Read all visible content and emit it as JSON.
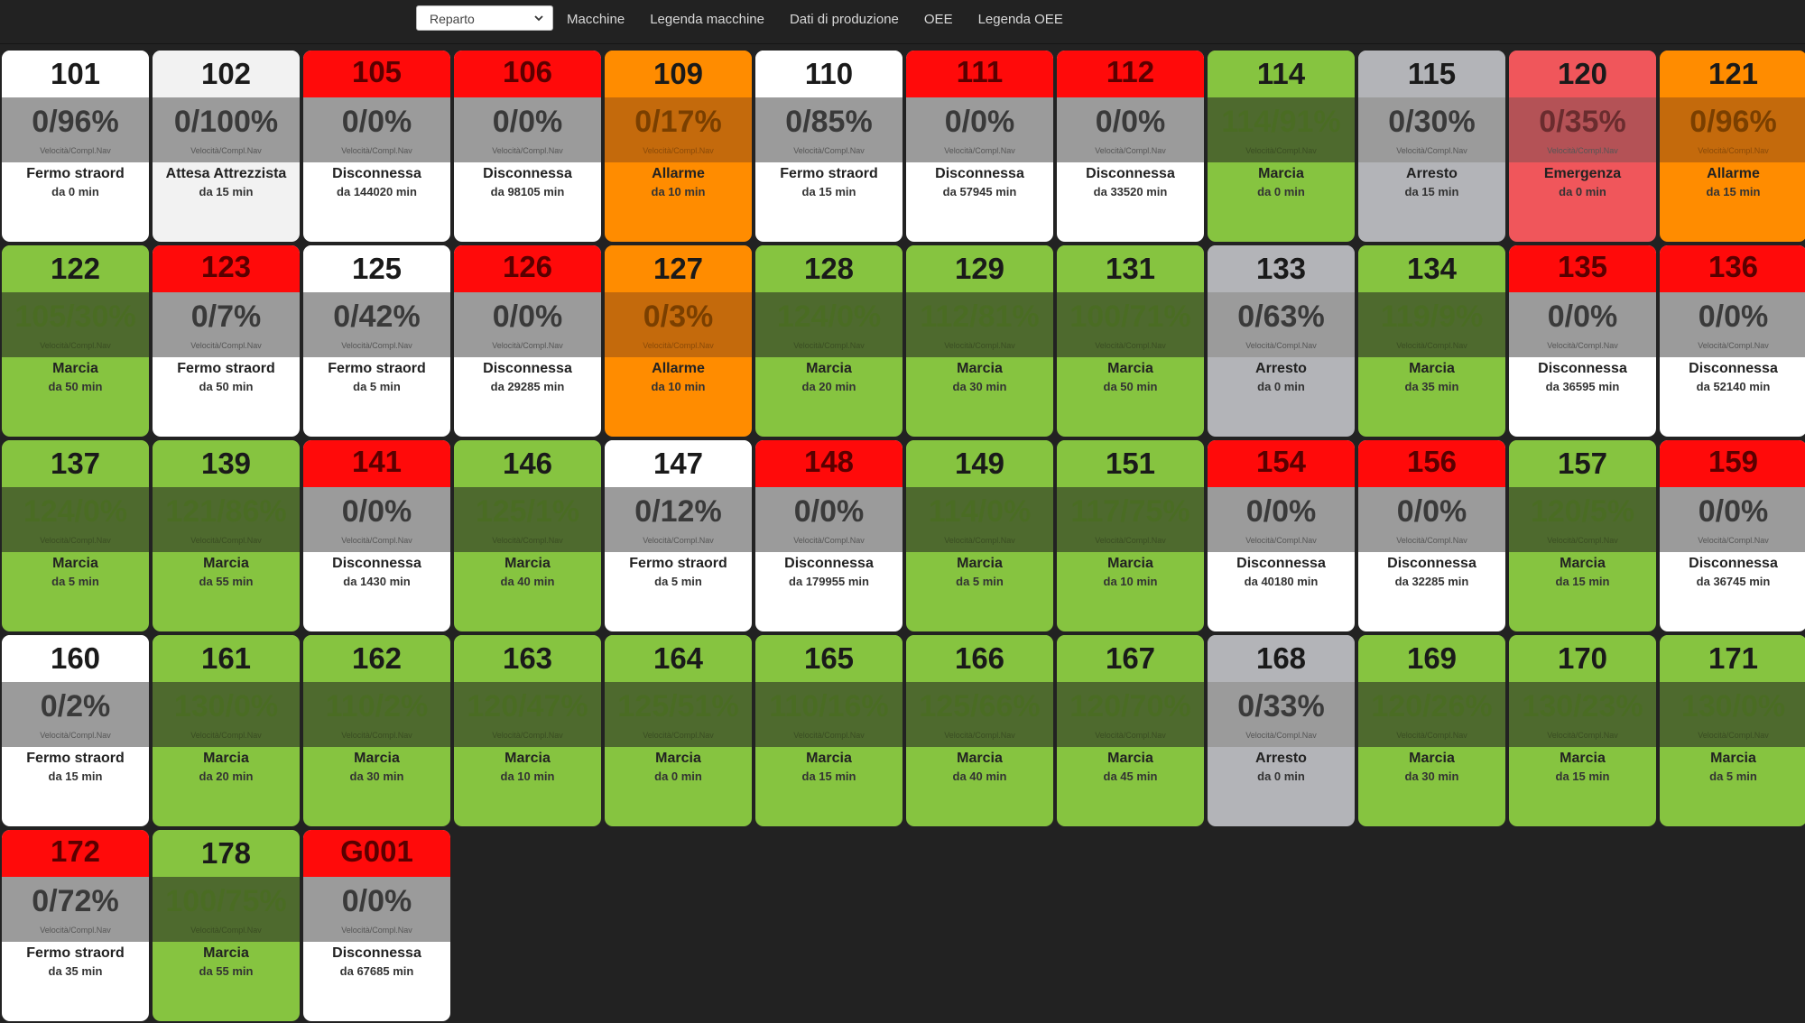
{
  "toolbar": {
    "select_value": "Reparto",
    "nav": [
      "Macchine",
      "Legenda macchine",
      "Dati di produzione",
      "OEE",
      "Legenda OEE"
    ]
  },
  "colors": {
    "white_hdr": "#ffffff",
    "gray_hdr": "#b3b4b8",
    "red_hdr": "#ff0a0a",
    "light_red": "#f0565b",
    "orange": "#ff8c00",
    "orange_mid": "#c46a0c",
    "green": "#86c440",
    "green_mid": "#4e6a2e",
    "gray_mid": "#9b9b9b",
    "gray_body": "#b3b4b8",
    "white_body": "#ffffff",
    "offwhite": "#f2f2f2"
  },
  "machines": [
    {
      "id": "101",
      "pct": "0/96%",
      "sub": "Velocità/Compl.Nav",
      "state": "Fermo straord",
      "dur": "da 0 min",
      "theme": "white"
    },
    {
      "id": "102",
      "pct": "0/100%",
      "sub": "Velocità/Compl.Nav",
      "state": "Attesa Attrezzista",
      "dur": "da 15 min",
      "theme": "offwhite"
    },
    {
      "id": "105",
      "pct": "0/0%",
      "sub": "Velocità/Compl.Nav",
      "state": "Disconnessa",
      "dur": "da 144020 min",
      "theme": "disc"
    },
    {
      "id": "106",
      "pct": "0/0%",
      "sub": "Velocità/Compl.Nav",
      "state": "Disconnessa",
      "dur": "da 98105 min",
      "theme": "disc"
    },
    {
      "id": "109",
      "pct": "0/17%",
      "sub": "Velocità/Compl.Nav",
      "state": "Allarme",
      "dur": "da 10 min",
      "theme": "orange"
    },
    {
      "id": "110",
      "pct": "0/85%",
      "sub": "Velocità/Compl.Nav",
      "state": "Fermo straord",
      "dur": "da 15 min",
      "theme": "white"
    },
    {
      "id": "111",
      "pct": "0/0%",
      "sub": "Velocità/Compl.Nav",
      "state": "Disconnessa",
      "dur": "da 57945 min",
      "theme": "disc"
    },
    {
      "id": "112",
      "pct": "0/0%",
      "sub": "Velocità/Compl.Nav",
      "state": "Disconnessa",
      "dur": "da 33520 min",
      "theme": "disc"
    },
    {
      "id": "114",
      "pct": "114/91%",
      "sub": "Velocità/Compl.Nav",
      "state": "Marcia",
      "dur": "da 0 min",
      "theme": "green"
    },
    {
      "id": "115",
      "pct": "0/30%",
      "sub": "Velocità/Compl.Nav",
      "state": "Arresto",
      "dur": "da 15 min",
      "theme": "gray"
    },
    {
      "id": "120",
      "pct": "0/35%",
      "sub": "Velocità/Compl.Nav",
      "state": "Emergenza",
      "dur": "da 0 min",
      "theme": "lightred"
    },
    {
      "id": "121",
      "pct": "0/96%",
      "sub": "Velocità/Compl.Nav",
      "state": "Allarme",
      "dur": "da 15 min",
      "theme": "orange"
    },
    {
      "id": "122",
      "pct": "105/30%",
      "sub": "Velocità/Compl.Nav",
      "state": "Marcia",
      "dur": "da 50 min",
      "theme": "green"
    },
    {
      "id": "123",
      "pct": "0/7%",
      "sub": "Velocità/Compl.Nav",
      "state": "Fermo straord",
      "dur": "da 50 min",
      "theme": "redwhite"
    },
    {
      "id": "125",
      "pct": "0/42%",
      "sub": "Velocità/Compl.Nav",
      "state": "Fermo straord",
      "dur": "da 5 min",
      "theme": "white"
    },
    {
      "id": "126",
      "pct": "0/0%",
      "sub": "Velocità/Compl.Nav",
      "state": "Disconnessa",
      "dur": "da 29285 min",
      "theme": "disc"
    },
    {
      "id": "127",
      "pct": "0/3%",
      "sub": "Velocità/Compl.Nav",
      "state": "Allarme",
      "dur": "da 10 min",
      "theme": "orange"
    },
    {
      "id": "128",
      "pct": "124/0%",
      "sub": "Velocità/Compl.Nav",
      "state": "Marcia",
      "dur": "da 20 min",
      "theme": "green"
    },
    {
      "id": "129",
      "pct": "112/81%",
      "sub": "Velocità/Compl.Nav",
      "state": "Marcia",
      "dur": "da 30 min",
      "theme": "green"
    },
    {
      "id": "131",
      "pct": "100/71%",
      "sub": "Velocità/Compl.Nav",
      "state": "Marcia",
      "dur": "da 50 min",
      "theme": "green"
    },
    {
      "id": "133",
      "pct": "0/63%",
      "sub": "Velocità/Compl.Nav",
      "state": "Arresto",
      "dur": "da 0 min",
      "theme": "gray"
    },
    {
      "id": "134",
      "pct": "119/9%",
      "sub": "Velocità/Compl.Nav",
      "state": "Marcia",
      "dur": "da 35 min",
      "theme": "green"
    },
    {
      "id": "135",
      "pct": "0/0%",
      "sub": "Velocità/Compl.Nav",
      "state": "Disconnessa",
      "dur": "da 36595 min",
      "theme": "disc"
    },
    {
      "id": "136",
      "pct": "0/0%",
      "sub": "Velocità/Compl.Nav",
      "state": "Disconnessa",
      "dur": "da 52140 min",
      "theme": "disc"
    },
    {
      "id": "137",
      "pct": "124/0%",
      "sub": "Velocità/Compl.Nav",
      "state": "Marcia",
      "dur": "da 5 min",
      "theme": "green"
    },
    {
      "id": "139",
      "pct": "121/86%",
      "sub": "Velocità/Compl.Nav",
      "state": "Marcia",
      "dur": "da 55 min",
      "theme": "green"
    },
    {
      "id": "141",
      "pct": "0/0%",
      "sub": "Velocità/Compl.Nav",
      "state": "Disconnessa",
      "dur": "da 1430 min",
      "theme": "disc"
    },
    {
      "id": "146",
      "pct": "125/1%",
      "sub": "Velocità/Compl.Nav",
      "state": "Marcia",
      "dur": "da 40 min",
      "theme": "green"
    },
    {
      "id": "147",
      "pct": "0/12%",
      "sub": "Velocità/Compl.Nav",
      "state": "Fermo straord",
      "dur": "da 5 min",
      "theme": "white"
    },
    {
      "id": "148",
      "pct": "0/0%",
      "sub": "Velocità/Compl.Nav",
      "state": "Disconnessa",
      "dur": "da 179955 min",
      "theme": "disc"
    },
    {
      "id": "149",
      "pct": "114/0%",
      "sub": "Velocità/Compl.Nav",
      "state": "Marcia",
      "dur": "da 5 min",
      "theme": "green"
    },
    {
      "id": "151",
      "pct": "117/75%",
      "sub": "Velocità/Compl.Nav",
      "state": "Marcia",
      "dur": "da 10 min",
      "theme": "green"
    },
    {
      "id": "154",
      "pct": "0/0%",
      "sub": "Velocità/Compl.Nav",
      "state": "Disconnessa",
      "dur": "da 40180 min",
      "theme": "disc"
    },
    {
      "id": "156",
      "pct": "0/0%",
      "sub": "Velocità/Compl.Nav",
      "state": "Disconnessa",
      "dur": "da 32285 min",
      "theme": "disc"
    },
    {
      "id": "157",
      "pct": "120/5%",
      "sub": "Velocità/Compl.Nav",
      "state": "Marcia",
      "dur": "da 15 min",
      "theme": "green"
    },
    {
      "id": "159",
      "pct": "0/0%",
      "sub": "Velocità/Compl.Nav",
      "state": "Disconnessa",
      "dur": "da 36745 min",
      "theme": "disc"
    },
    {
      "id": "160",
      "pct": "0/2%",
      "sub": "Velocità/Compl.Nav",
      "state": "Fermo straord",
      "dur": "da 15 min",
      "theme": "white"
    },
    {
      "id": "161",
      "pct": "130/0%",
      "sub": "Velocità/Compl.Nav",
      "state": "Marcia",
      "dur": "da 20 min",
      "theme": "green"
    },
    {
      "id": "162",
      "pct": "110/2%",
      "sub": "Velocità/Compl.Nav",
      "state": "Marcia",
      "dur": "da 30 min",
      "theme": "green"
    },
    {
      "id": "163",
      "pct": "120/47%",
      "sub": "Velocità/Compl.Nav",
      "state": "Marcia",
      "dur": "da 10 min",
      "theme": "green"
    },
    {
      "id": "164",
      "pct": "125/51%",
      "sub": "Velocità/Compl.Nav",
      "state": "Marcia",
      "dur": "da 0 min",
      "theme": "green"
    },
    {
      "id": "165",
      "pct": "110/16%",
      "sub": "Velocità/Compl.Nav",
      "state": "Marcia",
      "dur": "da 15 min",
      "theme": "green"
    },
    {
      "id": "166",
      "pct": "125/66%",
      "sub": "Velocità/Compl.Nav",
      "state": "Marcia",
      "dur": "da 40 min",
      "theme": "green"
    },
    {
      "id": "167",
      "pct": "120/70%",
      "sub": "Velocità/Compl.Nav",
      "state": "Marcia",
      "dur": "da 45 min",
      "theme": "green"
    },
    {
      "id": "168",
      "pct": "0/33%",
      "sub": "Velocità/Compl.Nav",
      "state": "Arresto",
      "dur": "da 0 min",
      "theme": "gray"
    },
    {
      "id": "169",
      "pct": "120/26%",
      "sub": "Velocità/Compl.Nav",
      "state": "Marcia",
      "dur": "da 30 min",
      "theme": "green"
    },
    {
      "id": "170",
      "pct": "130/23%",
      "sub": "Velocità/Compl.Nav",
      "state": "Marcia",
      "dur": "da 15 min",
      "theme": "green"
    },
    {
      "id": "171",
      "pct": "130/0%",
      "sub": "Velocità/Compl.Nav",
      "state": "Marcia",
      "dur": "da 5 min",
      "theme": "green"
    },
    {
      "id": "172",
      "pct": "0/72%",
      "sub": "Velocità/Compl.Nav",
      "state": "Fermo straord",
      "dur": "da 35 min",
      "theme": "redwhite"
    },
    {
      "id": "178",
      "pct": "100/75%",
      "sub": "Velocità/Compl.Nav",
      "state": "Marcia",
      "dur": "da 55 min",
      "theme": "green"
    },
    {
      "id": "G001",
      "pct": "0/0%",
      "sub": "Velocità/Compl.Nav",
      "state": "Disconnessa",
      "dur": "da 67685 min",
      "theme": "disc"
    }
  ]
}
